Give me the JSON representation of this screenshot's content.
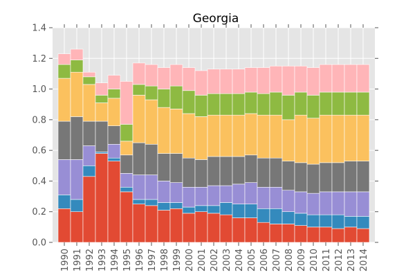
{
  "chart_data": {
    "type": "bar",
    "stacked": true,
    "title": "Georgia",
    "xlabel": "",
    "ylabel": "",
    "ylim": [
      0,
      1.4
    ],
    "yticks": [
      "0.0",
      "0.2",
      "0.4",
      "0.6",
      "0.8",
      "1.0",
      "1.2",
      "1.4"
    ],
    "grid": true,
    "legend": "none",
    "background": "#e5e5e5",
    "categories": [
      "1990",
      "1991",
      "1992",
      "1993",
      "1994",
      "1995",
      "1996",
      "1997",
      "1998",
      "1999",
      "2000",
      "2001",
      "2002",
      "2003",
      "2004",
      "2005",
      "2006",
      "2007",
      "2008",
      "2009",
      "2010",
      "2011",
      "2012",
      "2013",
      "2014"
    ],
    "series": [
      {
        "color": "#e24a33",
        "values": [
          0.22,
          0.2,
          0.43,
          0.58,
          0.53,
          0.33,
          0.25,
          0.24,
          0.21,
          0.22,
          0.19,
          0.2,
          0.19,
          0.18,
          0.16,
          0.16,
          0.13,
          0.12,
          0.12,
          0.11,
          0.1,
          0.1,
          0.09,
          0.1,
          0.09
        ]
      },
      {
        "color": "#348abd",
        "values": [
          0.09,
          0.08,
          0.07,
          0.01,
          0.02,
          0.03,
          0.03,
          0.04,
          0.05,
          0.04,
          0.04,
          0.04,
          0.05,
          0.08,
          0.09,
          0.09,
          0.09,
          0.1,
          0.08,
          0.08,
          0.08,
          0.08,
          0.09,
          0.07,
          0.08
        ]
      },
      {
        "color": "#988ed5",
        "values": [
          0.23,
          0.26,
          0.13,
          0.0,
          0.09,
          0.09,
          0.16,
          0.16,
          0.14,
          0.13,
          0.13,
          0.12,
          0.13,
          0.11,
          0.13,
          0.14,
          0.14,
          0.14,
          0.14,
          0.14,
          0.14,
          0.15,
          0.15,
          0.16,
          0.16
        ]
      },
      {
        "color": "#777777",
        "values": [
          0.25,
          0.28,
          0.16,
          0.2,
          0.12,
          0.12,
          0.21,
          0.2,
          0.18,
          0.19,
          0.19,
          0.18,
          0.19,
          0.19,
          0.18,
          0.18,
          0.19,
          0.19,
          0.19,
          0.19,
          0.19,
          0.19,
          0.19,
          0.2,
          0.2
        ]
      },
      {
        "color": "#fbc15e",
        "values": [
          0.28,
          0.29,
          0.24,
          0.12,
          0.18,
          0.09,
          0.31,
          0.29,
          0.3,
          0.29,
          0.29,
          0.28,
          0.27,
          0.27,
          0.27,
          0.27,
          0.28,
          0.28,
          0.27,
          0.31,
          0.3,
          0.31,
          0.31,
          0.3,
          0.3
        ]
      },
      {
        "color": "#8eba42",
        "values": [
          0.09,
          0.08,
          0.05,
          0.05,
          0.06,
          0.11,
          0.07,
          0.09,
          0.12,
          0.15,
          0.15,
          0.14,
          0.14,
          0.14,
          0.14,
          0.14,
          0.14,
          0.15,
          0.16,
          0.15,
          0.15,
          0.15,
          0.15,
          0.15,
          0.15
        ]
      },
      {
        "color": "#ffb5b8",
        "values": [
          0.07,
          0.07,
          0.03,
          0.08,
          0.09,
          0.28,
          0.14,
          0.14,
          0.14,
          0.14,
          0.15,
          0.16,
          0.16,
          0.16,
          0.16,
          0.16,
          0.17,
          0.17,
          0.19,
          0.17,
          0.18,
          0.18,
          0.18,
          0.18,
          0.18
        ]
      }
    ]
  }
}
